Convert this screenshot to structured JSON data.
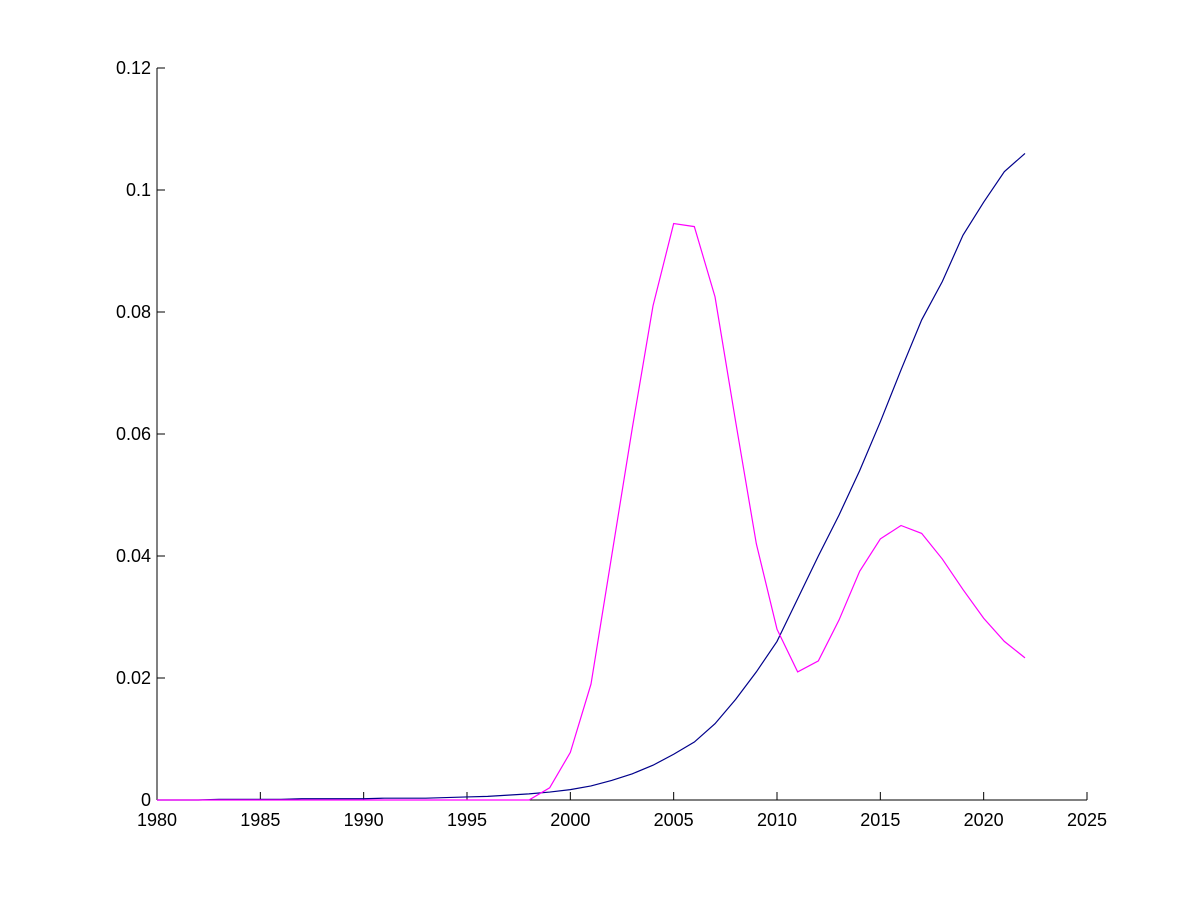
{
  "chart_data": {
    "type": "line",
    "x": [
      1980,
      1981,
      1982,
      1983,
      1984,
      1985,
      1986,
      1987,
      1988,
      1989,
      1990,
      1991,
      1992,
      1993,
      1994,
      1995,
      1996,
      1997,
      1998,
      1999,
      2000,
      2001,
      2002,
      2003,
      2004,
      2005,
      2006,
      2007,
      2008,
      2009,
      2010,
      2011,
      2012,
      2013,
      2014,
      2015,
      2016,
      2017,
      2018,
      2019,
      2020,
      2021,
      2022
    ],
    "series": [
      {
        "color": "#00008b",
        "values": [
          0,
          0,
          0,
          0.0001,
          0.0001,
          0.0001,
          0.0001,
          0.0002,
          0.0002,
          0.0002,
          0.0002,
          0.0003,
          0.0003,
          0.0003,
          0.0004,
          0.0005,
          0.0006,
          0.0008,
          0.001,
          0.0013,
          0.0017,
          0.0023,
          0.0032,
          0.0043,
          0.0057,
          0.0075,
          0.0095,
          0.0125,
          0.0165,
          0.021,
          0.026,
          0.033,
          0.04,
          0.0467,
          0.054,
          0.062,
          0.0705,
          0.0787,
          0.085,
          0.0926,
          0.098,
          0.103,
          0.106
        ]
      },
      {
        "color": "#ff00ff",
        "values": [
          0,
          0,
          0,
          0,
          0,
          0,
          0,
          0,
          0,
          0,
          0,
          0,
          0,
          0,
          0,
          0,
          0,
          0,
          0,
          0.002,
          0.0078,
          0.019,
          0.04,
          0.061,
          0.081,
          0.0945,
          0.094,
          0.0825,
          0.062,
          0.042,
          0.028,
          0.021,
          0.0228,
          0.0295,
          0.0375,
          0.0428,
          0.045,
          0.0437,
          0.0395,
          0.0345,
          0.0298,
          0.026,
          0.0233
        ]
      }
    ],
    "xlim": [
      1980,
      2025
    ],
    "xticks": [
      1980,
      1985,
      1990,
      1995,
      2000,
      2005,
      2010,
      2015,
      2020,
      2025
    ],
    "ylim": [
      0,
      0.12
    ],
    "yticks": [
      0,
      0.02,
      0.04,
      0.06,
      0.08,
      0.1,
      0.12
    ]
  }
}
